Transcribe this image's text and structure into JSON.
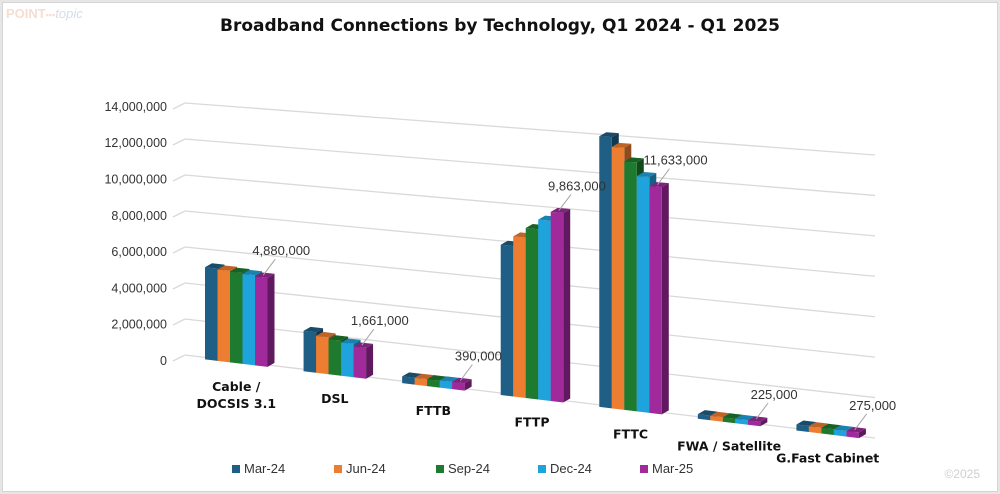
{
  "logo": {
    "part1": "POINT",
    "part2": "topic"
  },
  "copyright": "©2025",
  "chart_data": {
    "type": "bar",
    "subtype": "3d-clustered-column",
    "title": "Broadband Connections by Technology, Q1 2024 - Q1 2025",
    "xlabel": "",
    "ylabel": "",
    "ylim": [
      0,
      14000000
    ],
    "yticks": [
      0,
      2000000,
      4000000,
      6000000,
      8000000,
      10000000,
      12000000,
      14000000
    ],
    "ytick_labels": [
      "0",
      "2,000,000",
      "4,000,000",
      "6,000,000",
      "8,000,000",
      "10,000,000",
      "12,000,000",
      "14,000,000"
    ],
    "grid": true,
    "legend_position": "bottom",
    "categories": [
      [
        "Cable /",
        "DOCSIS 3.1"
      ],
      [
        "DSL"
      ],
      [
        "FTTB"
      ],
      [
        "FTTP"
      ],
      [
        "FTTC"
      ],
      [
        "FWA / Satellite"
      ],
      [
        "G.Fast Cabinet"
      ]
    ],
    "series": [
      {
        "name": "Mar-24",
        "color": "#1f5f85",
        "values": [
          5100000,
          2200000,
          360000,
          7900000,
          14000000,
          230000,
          300000
        ]
      },
      {
        "name": "Jun-24",
        "color": "#ed7d31",
        "values": [
          5050000,
          2000000,
          370000,
          8400000,
          13500000,
          228000,
          295000
        ]
      },
      {
        "name": "Sep-24",
        "color": "#1e7a2e",
        "values": [
          5000000,
          1900000,
          375000,
          8900000,
          12800000,
          226000,
          290000
        ]
      },
      {
        "name": "Dec-24",
        "color": "#1fa3dc",
        "values": [
          4950000,
          1800000,
          385000,
          9400000,
          12100000,
          225000,
          282000
        ]
      },
      {
        "name": "Mar-25",
        "color": "#a02a9c",
        "values": [
          4880000,
          1661000,
          390000,
          9863000,
          11633000,
          225000,
          275000
        ]
      }
    ],
    "annotations": [
      {
        "category_index": 0,
        "series": "Mar-25",
        "text": "4,880,000"
      },
      {
        "category_index": 1,
        "series": "Mar-25",
        "text": "1,661,000"
      },
      {
        "category_index": 2,
        "series": "Mar-25",
        "text": "390,000"
      },
      {
        "category_index": 3,
        "series": "Mar-25",
        "text": "9,863,000"
      },
      {
        "category_index": 4,
        "series": "Mar-25",
        "text": "11,633,000"
      },
      {
        "category_index": 5,
        "series": "Mar-25",
        "text": "225,000"
      },
      {
        "category_index": 6,
        "series": "Mar-25",
        "text": "275,000"
      }
    ]
  }
}
